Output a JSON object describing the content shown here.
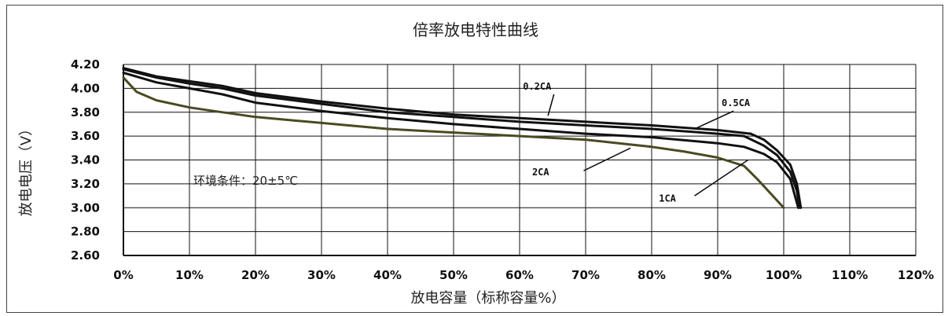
{
  "chart_data": {
    "type": "line",
    "title": "倍率放电特性曲线",
    "xlabel": "放电容量（标称容量%）",
    "ylabel": "放电电压（V）",
    "xlim": [
      0,
      120
    ],
    "ylim": [
      2.6,
      4.2
    ],
    "x_ticks": [
      "0%",
      "10%",
      "20%",
      "30%",
      "40%",
      "50%",
      "60%",
      "70%",
      "80%",
      "90%",
      "100%",
      "110%",
      "120%"
    ],
    "y_ticks": [
      "4.20",
      "4.00",
      "3.80",
      "3.60",
      "3.40",
      "3.20",
      "3.00",
      "2.80",
      "2.60"
    ],
    "grid": true,
    "annotation": "环境条件：20±5℃",
    "series": [
      {
        "name": "0.2CA",
        "color": "#111111",
        "points": [
          [
            0,
            4.17
          ],
          [
            5,
            4.1
          ],
          [
            10,
            4.06
          ],
          [
            15,
            4.02
          ],
          [
            20,
            3.96
          ],
          [
            30,
            3.89
          ],
          [
            40,
            3.83
          ],
          [
            50,
            3.78
          ],
          [
            60,
            3.75
          ],
          [
            70,
            3.72
          ],
          [
            80,
            3.69
          ],
          [
            90,
            3.65
          ],
          [
            95,
            3.62
          ],
          [
            97,
            3.57
          ],
          [
            99,
            3.48
          ],
          [
            101,
            3.36
          ],
          [
            102,
            3.2
          ],
          [
            102.6,
            3.0
          ]
        ]
      },
      {
        "name": "0.5CA",
        "color": "#111111",
        "points": [
          [
            0,
            4.16
          ],
          [
            5,
            4.09
          ],
          [
            10,
            4.04
          ],
          [
            15,
            4.0
          ],
          [
            20,
            3.94
          ],
          [
            30,
            3.87
          ],
          [
            40,
            3.8
          ],
          [
            50,
            3.76
          ],
          [
            60,
            3.72
          ],
          [
            70,
            3.69
          ],
          [
            80,
            3.66
          ],
          [
            90,
            3.62
          ],
          [
            94,
            3.6
          ],
          [
            97,
            3.52
          ],
          [
            99,
            3.44
          ],
          [
            101,
            3.3
          ],
          [
            102,
            3.14
          ],
          [
            102.4,
            3.0
          ]
        ]
      },
      {
        "name": "1CA",
        "color": "#111111",
        "points": [
          [
            0,
            4.13
          ],
          [
            5,
            4.05
          ],
          [
            10,
            4.0
          ],
          [
            15,
            3.95
          ],
          [
            20,
            3.88
          ],
          [
            30,
            3.81
          ],
          [
            40,
            3.75
          ],
          [
            50,
            3.7
          ],
          [
            60,
            3.66
          ],
          [
            70,
            3.62
          ],
          [
            80,
            3.59
          ],
          [
            90,
            3.54
          ],
          [
            94,
            3.51
          ],
          [
            97,
            3.45
          ],
          [
            99,
            3.38
          ],
          [
            101,
            3.24
          ],
          [
            102.2,
            3.0
          ]
        ]
      },
      {
        "name": "2CA",
        "color": "#4a4a22",
        "points": [
          [
            0,
            4.09
          ],
          [
            2,
            3.97
          ],
          [
            5,
            3.9
          ],
          [
            10,
            3.84
          ],
          [
            15,
            3.8
          ],
          [
            20,
            3.76
          ],
          [
            30,
            3.71
          ],
          [
            40,
            3.66
          ],
          [
            50,
            3.63
          ],
          [
            60,
            3.6
          ],
          [
            70,
            3.57
          ],
          [
            75,
            3.54
          ],
          [
            80,
            3.51
          ],
          [
            85,
            3.47
          ],
          [
            90,
            3.42
          ],
          [
            94,
            3.35
          ],
          [
            96,
            3.24
          ],
          [
            98,
            3.12
          ],
          [
            100,
            3.0
          ]
        ]
      }
    ]
  }
}
